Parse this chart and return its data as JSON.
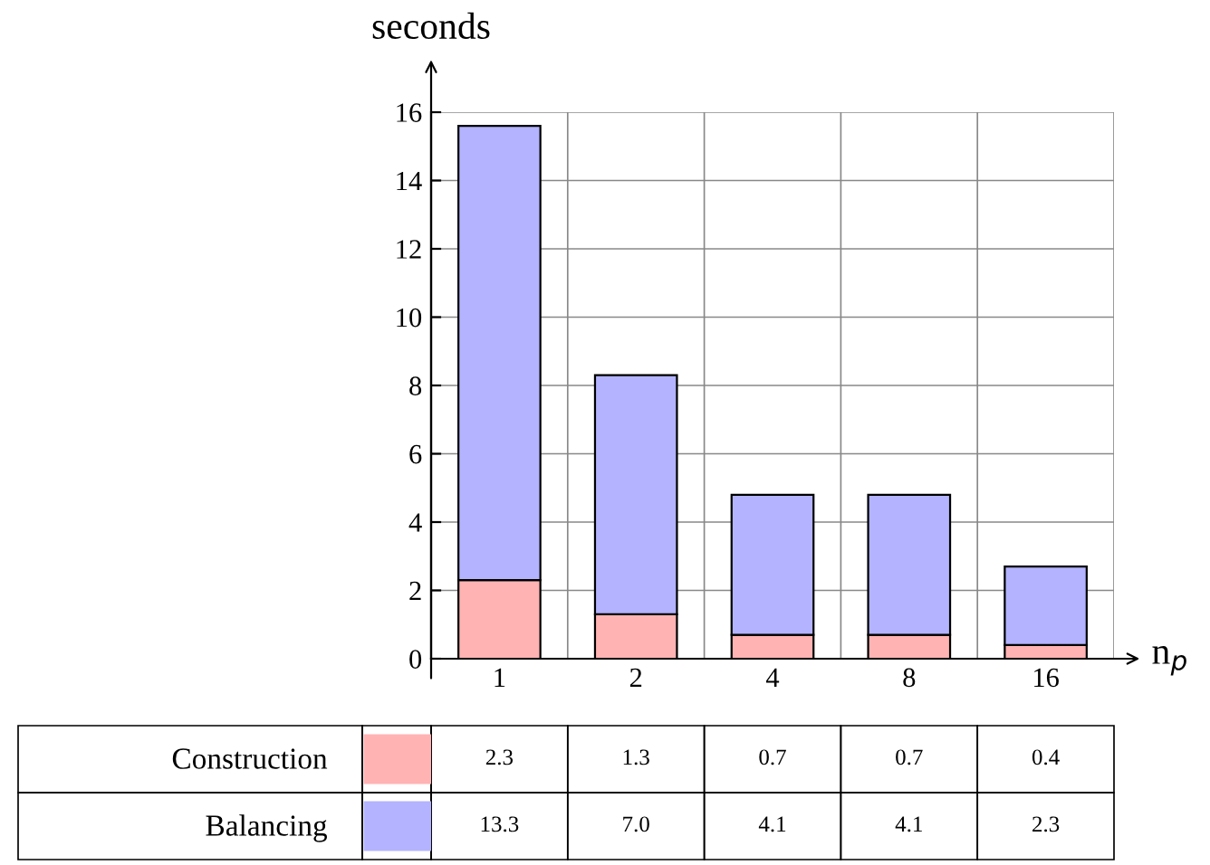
{
  "chart_data": {
    "type": "bar",
    "stacked": true,
    "xlabel": "n$_{p}$",
    "ylabel": "seconds",
    "categories": [
      "1",
      "2",
      "4",
      "8",
      "16"
    ],
    "series": [
      {
        "name": "Construction",
        "color": "#ffb3b3",
        "values": [
          2.3,
          1.3,
          0.7,
          0.7,
          0.4
        ],
        "value_labels": [
          "2.3",
          "1.3",
          "0.7",
          "0.7",
          "0.4"
        ]
      },
      {
        "name": "Balancing",
        "color": "#b3b3ff",
        "values": [
          13.3,
          7.0,
          4.1,
          4.1,
          2.3
        ],
        "value_labels": [
          "13.3",
          "7.0",
          "4.1",
          "4.1",
          "2.3"
        ]
      }
    ],
    "ylim": [
      0,
      16
    ],
    "yticks": [
      0,
      2,
      4,
      6,
      8,
      10,
      12,
      14,
      16
    ],
    "grid": true,
    "legend": "bottom left"
  }
}
